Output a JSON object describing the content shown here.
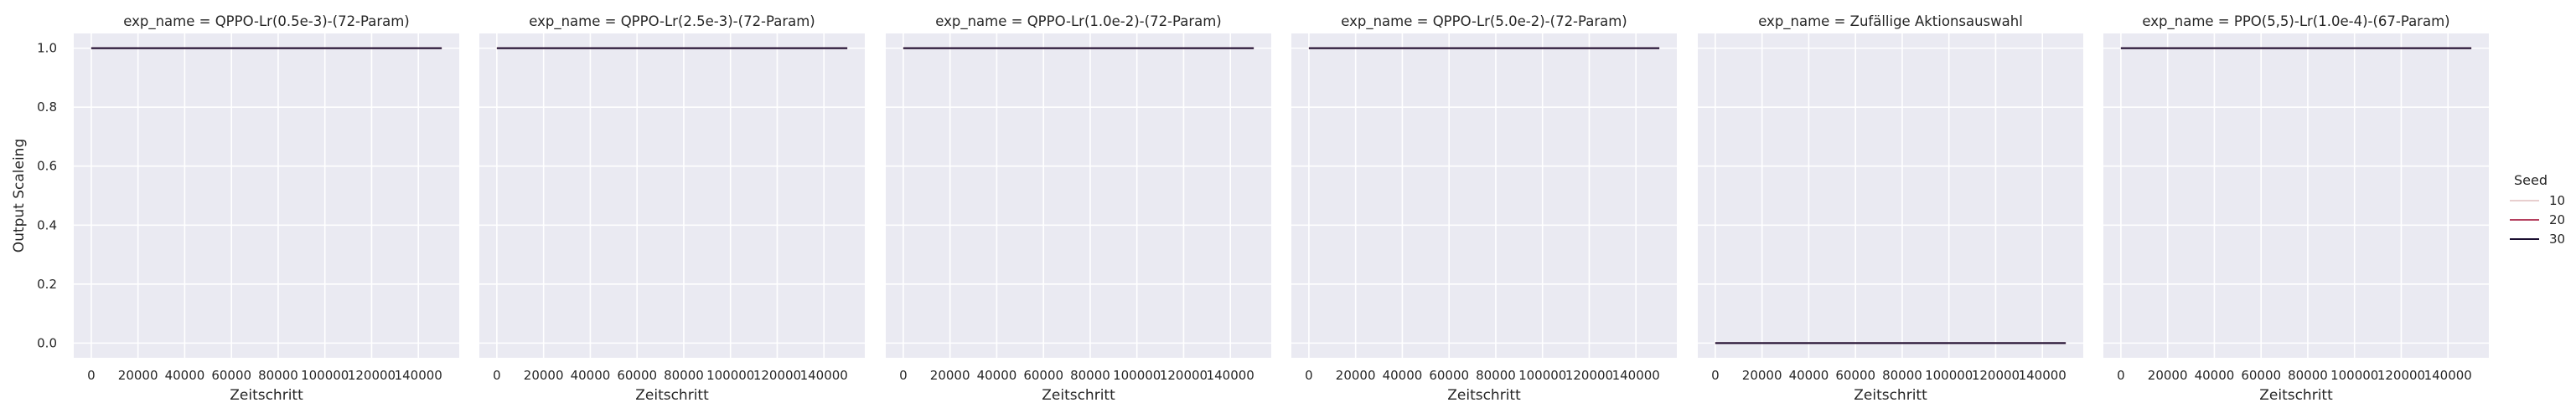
{
  "chart_data": [
    {
      "type": "line",
      "title": "exp_name = QPPO-Lr(0.5e-3)-(72-Param)",
      "xlabel": "Zeitschritt",
      "ylabel": "Output Scaleing",
      "xlim": [
        -7500,
        157500
      ],
      "ylim": [
        -0.05,
        1.05
      ],
      "xticks": [
        0,
        20000,
        40000,
        60000,
        80000,
        100000,
        120000,
        140000
      ],
      "yticks": [
        0.0,
        0.2,
        0.4,
        0.6,
        0.8,
        1.0
      ],
      "series": [
        {
          "name": "10",
          "x": [
            0,
            150000
          ],
          "y": [
            1.0,
            1.0
          ]
        },
        {
          "name": "20",
          "x": [
            0,
            150000
          ],
          "y": [
            1.0,
            1.0
          ]
        },
        {
          "name": "30",
          "x": [
            0,
            150000
          ],
          "y": [
            1.0,
            1.0
          ]
        }
      ]
    },
    {
      "type": "line",
      "title": "exp_name = QPPO-Lr(2.5e-3)-(72-Param)",
      "xlabel": "Zeitschritt",
      "ylabel": "",
      "xlim": [
        -7500,
        157500
      ],
      "ylim": [
        -0.05,
        1.05
      ],
      "xticks": [
        0,
        20000,
        40000,
        60000,
        80000,
        100000,
        120000,
        140000
      ],
      "yticks": [
        0.0,
        0.2,
        0.4,
        0.6,
        0.8,
        1.0
      ],
      "series": [
        {
          "name": "10",
          "x": [
            0,
            150000
          ],
          "y": [
            1.0,
            1.0
          ]
        },
        {
          "name": "20",
          "x": [
            0,
            150000
          ],
          "y": [
            1.0,
            1.0
          ]
        },
        {
          "name": "30",
          "x": [
            0,
            150000
          ],
          "y": [
            1.0,
            1.0
          ]
        }
      ]
    },
    {
      "type": "line",
      "title": "exp_name = QPPO-Lr(1.0e-2)-(72-Param)",
      "xlabel": "Zeitschritt",
      "ylabel": "",
      "xlim": [
        -7500,
        157500
      ],
      "ylim": [
        -0.05,
        1.05
      ],
      "xticks": [
        0,
        20000,
        40000,
        60000,
        80000,
        100000,
        120000,
        140000
      ],
      "yticks": [
        0.0,
        0.2,
        0.4,
        0.6,
        0.8,
        1.0
      ],
      "series": [
        {
          "name": "10",
          "x": [
            0,
            150000
          ],
          "y": [
            1.0,
            1.0
          ]
        },
        {
          "name": "20",
          "x": [
            0,
            150000
          ],
          "y": [
            1.0,
            1.0
          ]
        },
        {
          "name": "30",
          "x": [
            0,
            150000
          ],
          "y": [
            1.0,
            1.0
          ]
        }
      ]
    },
    {
      "type": "line",
      "title": "exp_name = QPPO-Lr(5.0e-2)-(72-Param)",
      "xlabel": "Zeitschritt",
      "ylabel": "",
      "xlim": [
        -7500,
        157500
      ],
      "ylim": [
        -0.05,
        1.05
      ],
      "xticks": [
        0,
        20000,
        40000,
        60000,
        80000,
        100000,
        120000,
        140000
      ],
      "yticks": [
        0.0,
        0.2,
        0.4,
        0.6,
        0.8,
        1.0
      ],
      "series": [
        {
          "name": "10",
          "x": [
            0,
            150000
          ],
          "y": [
            1.0,
            1.0
          ]
        },
        {
          "name": "20",
          "x": [
            0,
            150000
          ],
          "y": [
            1.0,
            1.0
          ]
        },
        {
          "name": "30",
          "x": [
            0,
            150000
          ],
          "y": [
            1.0,
            1.0
          ]
        }
      ]
    },
    {
      "type": "line",
      "title": "exp_name = Zufällige Aktionsauswahl",
      "xlabel": "Zeitschritt",
      "ylabel": "",
      "xlim": [
        -7500,
        157500
      ],
      "ylim": [
        -0.05,
        1.05
      ],
      "xticks": [
        0,
        20000,
        40000,
        60000,
        80000,
        100000,
        120000,
        140000
      ],
      "yticks": [
        0.0,
        0.2,
        0.4,
        0.6,
        0.8,
        1.0
      ],
      "series": [
        {
          "name": "10",
          "x": [
            0,
            150000
          ],
          "y": [
            0.0,
            0.0
          ]
        },
        {
          "name": "20",
          "x": [
            0,
            150000
          ],
          "y": [
            0.0,
            0.0
          ]
        },
        {
          "name": "30",
          "x": [
            0,
            150000
          ],
          "y": [
            0.0,
            0.0
          ]
        }
      ]
    },
    {
      "type": "line",
      "title": "exp_name = PPO(5,5)-Lr(1.0e-4)-(67-Param)",
      "xlabel": "Zeitschritt",
      "ylabel": "",
      "xlim": [
        -7500,
        157500
      ],
      "ylim": [
        -0.05,
        1.05
      ],
      "xticks": [
        0,
        20000,
        40000,
        60000,
        80000,
        100000,
        120000,
        140000
      ],
      "yticks": [
        0.0,
        0.2,
        0.4,
        0.6,
        0.8,
        1.0
      ],
      "series": [
        {
          "name": "10",
          "x": [
            0,
            150000
          ],
          "y": [
            1.0,
            1.0
          ]
        },
        {
          "name": "20",
          "x": [
            0,
            150000
          ],
          "y": [
            1.0,
            1.0
          ]
        },
        {
          "name": "30",
          "x": [
            0,
            150000
          ],
          "y": [
            1.0,
            1.0
          ]
        }
      ]
    }
  ],
  "legend": {
    "title": "Seed",
    "placement": "right",
    "entries": [
      {
        "label": "10",
        "color": "#e8cfcf"
      },
      {
        "label": "20",
        "color": "#b5405f"
      },
      {
        "label": "30",
        "color": "#1a0e30"
      }
    ]
  },
  "colors": {
    "panel_background": "#eaeaf2",
    "grid": "#ffffff",
    "text": "#262626"
  }
}
